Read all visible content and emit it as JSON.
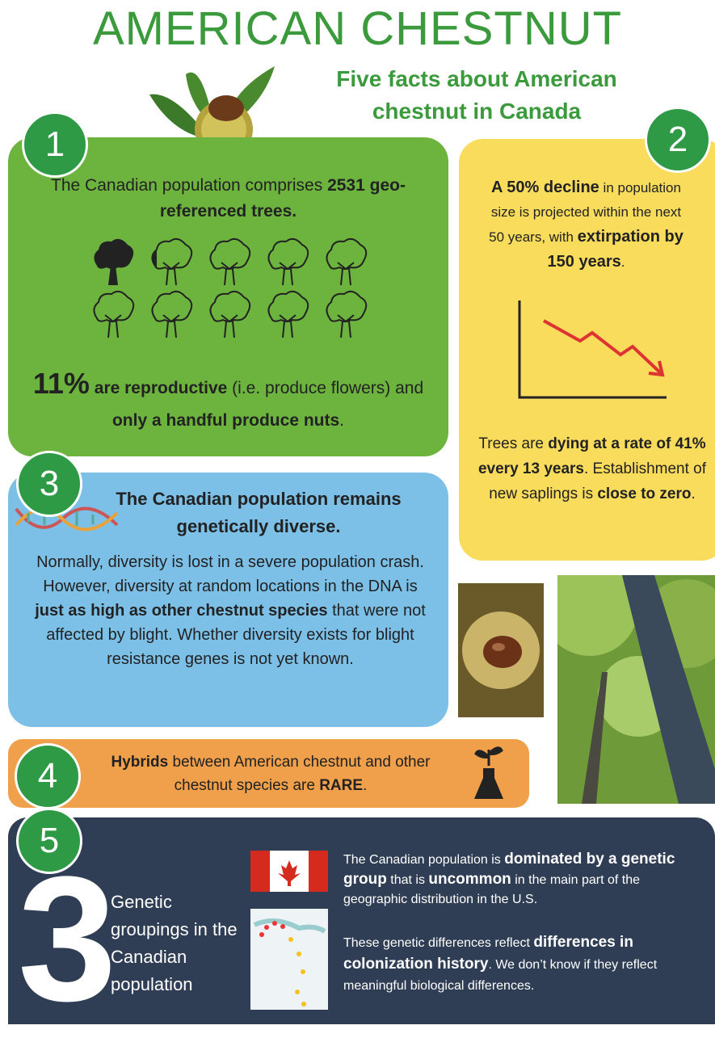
{
  "header": {
    "title": "AMERICAN CHESTNUT",
    "subtitle": "Five facts about American chestnut in Canada"
  },
  "facts": [
    {
      "number": "1",
      "text": [
        "The Canadian population comprises ",
        "2531",
        " geo-referenced trees."
      ],
      "text2": [
        "11%",
        " are reproductive",
        " (i.e. produce flowers) and ",
        "only a handful produce nuts",
        "."
      ]
    },
    {
      "number": "2",
      "text": [
        "A 50% decline",
        " in population size is projected within the next 50 years, with ",
        "extirpation by 150 years",
        "."
      ],
      "text2": [
        "Trees are ",
        "dying at a rate of 41% every 13 years",
        ". Establishment of new saplings is ",
        "close to zero",
        "."
      ]
    },
    {
      "number": "3",
      "heading": "The Canadian population remains genetically diverse.",
      "text": [
        "Normally, diversity is lost in a severe population crash. However, diversity at random locations in the DNA is ",
        "just as high as other chestnut species",
        " that were not affected by blight. Whether diversity exists for blight resistance genes is not yet known."
      ]
    },
    {
      "number": "4",
      "text": [
        "Hybrids",
        " between American chestnut and other chestnut species are ",
        "RARE",
        "."
      ]
    },
    {
      "number": "5",
      "big": "3",
      "label": "Genetic groupings in the Canadian population",
      "text": [
        "The Canadian population is ",
        "dominated by a genetic group",
        " that is ",
        "uncommon",
        " in the main part of the geographic distribution in the U.S."
      ],
      "text2": [
        "These genetic differences reflect ",
        "differences in colonization history",
        ". We don’t know if they reflect meaningful biological differences."
      ]
    }
  ]
}
